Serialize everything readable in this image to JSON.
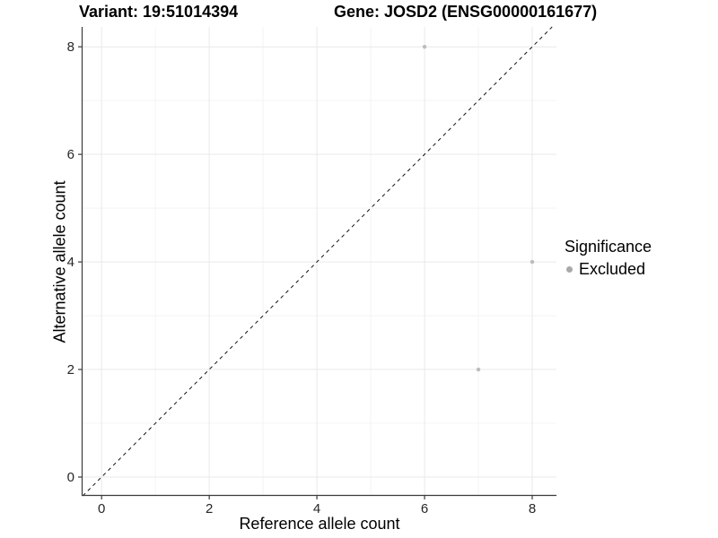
{
  "figure": {
    "variant_title": "Variant: 19:51014394",
    "gene_title": "Gene: JOSD2 (ENSG00000161677)"
  },
  "legend": {
    "title": "Significance",
    "items": [
      {
        "label": "Excluded",
        "color": "#a9a9a9"
      }
    ]
  },
  "chart_data": {
    "type": "scatter",
    "title": "Variant: 19:51014394  /  Gene: JOSD2 (ENSG00000161677)",
    "xlabel": "Reference allele count",
    "ylabel": "Alternative allele count",
    "xlim": [
      -0.37,
      8.45
    ],
    "ylim": [
      -0.35,
      8.37
    ],
    "x_ticks": [
      0,
      2,
      4,
      6,
      8
    ],
    "y_ticks": [
      0,
      2,
      4,
      6,
      8
    ],
    "x_minor": [
      1,
      3,
      5,
      7
    ],
    "y_minor": [
      1,
      3,
      5,
      7
    ],
    "grid": true,
    "legend_position": "right",
    "series": [
      {
        "name": "Excluded",
        "color": "#bcbcbc",
        "points": [
          {
            "x": 6,
            "y": 8
          },
          {
            "x": 8,
            "y": 4
          },
          {
            "x": 7,
            "y": 2
          }
        ]
      }
    ],
    "reference_line": {
      "type": "identity",
      "equation": "y = x",
      "style": "dashed",
      "color": "#111111"
    },
    "colors": {
      "grid_major": "#e9e9e9",
      "grid_minor": "#f4f4f4",
      "axis_line": "#3b3b3b",
      "tick_label": "#262626"
    }
  }
}
